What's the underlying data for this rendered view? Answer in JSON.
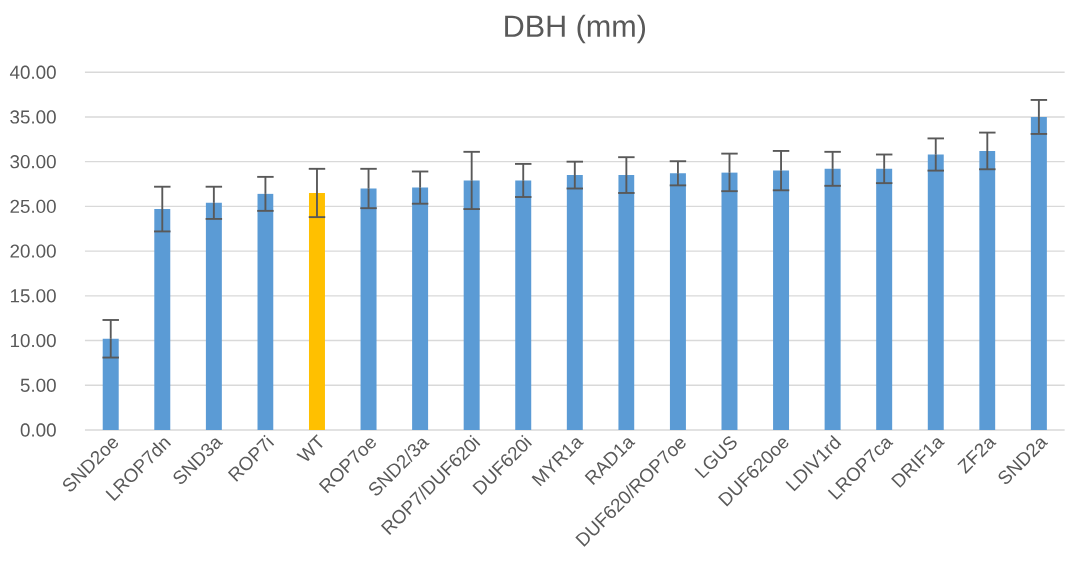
{
  "chart_data": {
    "type": "bar",
    "title": "DBH (mm)",
    "categories": [
      "SND2oe",
      "LROP7dn",
      "SND3a",
      "ROP7i",
      "WT",
      "ROP7oe",
      "SND2/3a",
      "ROP7/DUF620i",
      "DUF620i",
      "MYR1a",
      "RAD1a",
      "DUF620/ROP7oe",
      "LGUS",
      "DUF620oe",
      "LDIV1rd",
      "LROP7ca",
      "DRIF1a",
      "ZF2a",
      "SND2a"
    ],
    "values": [
      10.2,
      24.7,
      25.4,
      26.4,
      26.5,
      27.0,
      27.1,
      27.9,
      27.9,
      28.5,
      28.5,
      28.7,
      28.8,
      29.0,
      29.2,
      29.2,
      30.8,
      31.2,
      35.0
    ],
    "errors": [
      2.1,
      2.5,
      1.8,
      1.9,
      2.7,
      2.2,
      1.8,
      3.2,
      1.85,
      1.5,
      2.0,
      1.35,
      2.1,
      2.2,
      1.9,
      1.6,
      1.8,
      2.05,
      1.9
    ],
    "colors": [
      "#5b9bd5",
      "#5b9bd5",
      "#5b9bd5",
      "#5b9bd5",
      "#ffc000",
      "#5b9bd5",
      "#5b9bd5",
      "#5b9bd5",
      "#5b9bd5",
      "#5b9bd5",
      "#5b9bd5",
      "#5b9bd5",
      "#5b9bd5",
      "#5b9bd5",
      "#5b9bd5",
      "#5b9bd5",
      "#5b9bd5",
      "#5b9bd5",
      "#5b9bd5"
    ],
    "ylim": [
      0,
      40
    ],
    "yticks": [
      {
        "value": 0,
        "label": "0.00"
      },
      {
        "value": 5,
        "label": "5.00"
      },
      {
        "value": 10,
        "label": "10.00"
      },
      {
        "value": 15,
        "label": "15.00"
      },
      {
        "value": 20,
        "label": "20.00"
      },
      {
        "value": 25,
        "label": "25.00"
      },
      {
        "value": 30,
        "label": "30.00"
      },
      {
        "value": 35,
        "label": "35.00"
      },
      {
        "value": 40,
        "label": "40.00"
      }
    ],
    "grid": "y"
  }
}
